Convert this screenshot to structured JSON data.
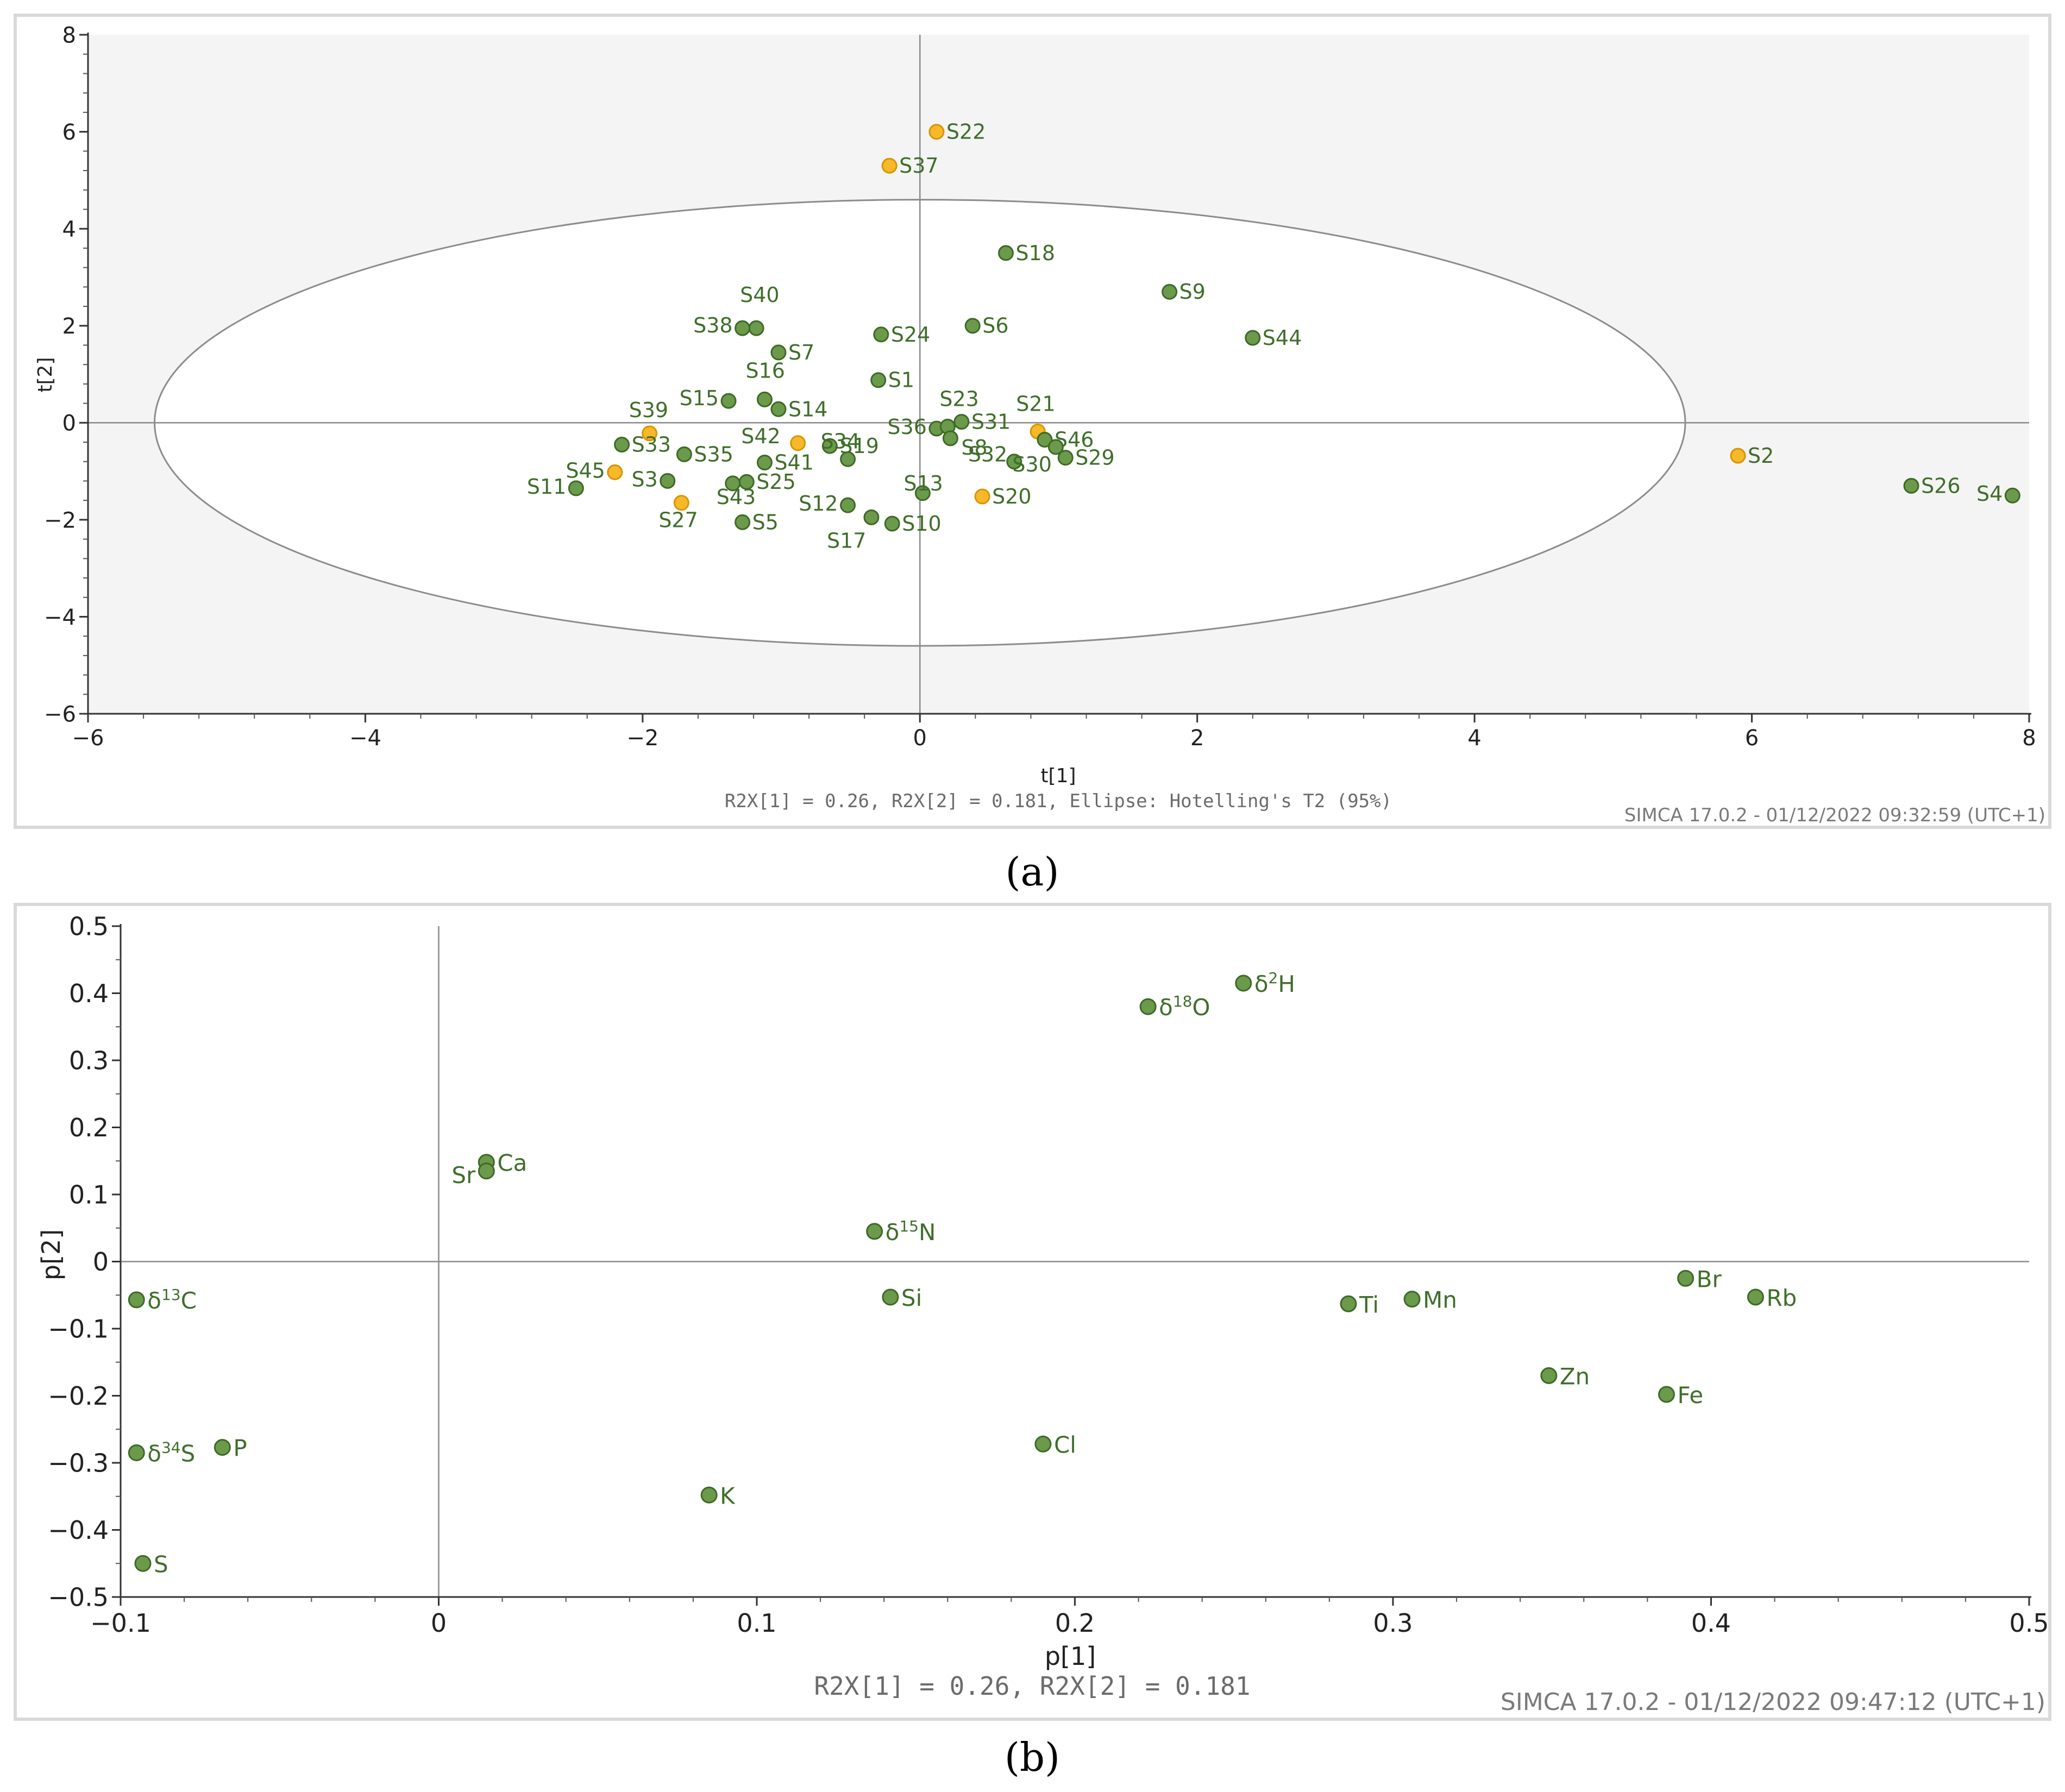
{
  "colors": {
    "green": "#6a9a4a",
    "green_stroke": "#3e6a28",
    "orange": "#f7b929",
    "orange_stroke": "#d89500",
    "label": "#3f6f2a"
  },
  "chart_data": [
    {
      "id": "a",
      "type": "scatter",
      "caption": "(a)",
      "xlabel": "t[1]",
      "ylabel": "t[2]",
      "xlim": [
        -6,
        8
      ],
      "ylim": [
        -6,
        8
      ],
      "xticks": [
        -6,
        -4,
        -2,
        0,
        2,
        4,
        6,
        8
      ],
      "yticks": [
        -6,
        -4,
        -2,
        0,
        2,
        4,
        6,
        8
      ],
      "xtick_labels": [
        "−6",
        "−4",
        "−2",
        "0",
        "2",
        "4",
        "6",
        "8"
      ],
      "ytick_labels": [
        "−6",
        "−4",
        "−2",
        "0",
        "2",
        "4",
        "6",
        "8"
      ],
      "footer": "R2X[1] = 0.26, R2X[2] = 0.181, Ellipse: Hotelling's T2 (95%)",
      "stamp": "SIMCA 17.0.2 - 01/12/2022 09:32:59 (UTC+1)",
      "ellipse": {
        "cx": 0,
        "cy": 0,
        "rx": 5.52,
        "ry": 4.6
      },
      "points": [
        {
          "label": "S22",
          "x": 0.12,
          "y": 6.0,
          "group": "orange"
        },
        {
          "label": "S37",
          "x": -0.22,
          "y": 5.3,
          "group": "orange"
        },
        {
          "label": "S18",
          "x": 0.62,
          "y": 3.5,
          "group": "green"
        },
        {
          "label": "S9",
          "x": 1.8,
          "y": 2.7,
          "group": "green"
        },
        {
          "label": "S44",
          "x": 2.4,
          "y": 1.75,
          "group": "green"
        },
        {
          "label": "S6",
          "x": 0.38,
          "y": 2.0,
          "group": "green"
        },
        {
          "label": "S24",
          "x": -0.28,
          "y": 1.82,
          "group": "green"
        },
        {
          "label": "S40",
          "x": -1.18,
          "y": 1.95,
          "group": "green"
        },
        {
          "label": "S38",
          "x": -1.28,
          "y": 1.95,
          "group": "green"
        },
        {
          "label": "S7",
          "x": -1.02,
          "y": 1.45,
          "group": "green"
        },
        {
          "label": "S1",
          "x": -0.3,
          "y": 0.88,
          "group": "green"
        },
        {
          "label": "S16",
          "x": -1.12,
          "y": 0.48,
          "group": "green"
        },
        {
          "label": "S15",
          "x": -1.38,
          "y": 0.45,
          "group": "green"
        },
        {
          "label": "S14",
          "x": -1.02,
          "y": 0.28,
          "group": "green"
        },
        {
          "label": "S39",
          "x": -1.95,
          "y": -0.22,
          "group": "orange"
        },
        {
          "label": "S33",
          "x": -2.15,
          "y": -0.45,
          "group": "green"
        },
        {
          "label": "S35",
          "x": -1.7,
          "y": -0.65,
          "group": "green"
        },
        {
          "label": "S42",
          "x": -0.88,
          "y": -0.42,
          "group": "orange"
        },
        {
          "label": "S19",
          "x": -0.65,
          "y": -0.48,
          "group": "green"
        },
        {
          "label": "S41",
          "x": -1.12,
          "y": -0.82,
          "group": "green"
        },
        {
          "label": "S45",
          "x": -2.2,
          "y": -1.02,
          "group": "orange"
        },
        {
          "label": "S11",
          "x": -2.48,
          "y": -1.35,
          "group": "green"
        },
        {
          "label": "S3",
          "x": -1.82,
          "y": -1.2,
          "group": "green"
        },
        {
          "label": "S25",
          "x": -1.25,
          "y": -1.22,
          "group": "green"
        },
        {
          "label": "S27",
          "x": -1.72,
          "y": -1.65,
          "group": "orange"
        },
        {
          "label": "S43",
          "x": -1.35,
          "y": -1.25,
          "group": "green"
        },
        {
          "label": "S5",
          "x": -1.28,
          "y": -2.05,
          "group": "green"
        },
        {
          "label": "S12",
          "x": -0.52,
          "y": -1.7,
          "group": "green"
        },
        {
          "label": "S34",
          "x": -0.52,
          "y": -0.75,
          "group": "green"
        },
        {
          "label": "S17",
          "x": -0.35,
          "y": -1.95,
          "group": "green"
        },
        {
          "label": "S10",
          "x": -0.2,
          "y": -2.08,
          "group": "green"
        },
        {
          "label": "S13",
          "x": 0.02,
          "y": -1.45,
          "group": "green"
        },
        {
          "label": "S36",
          "x": 0.12,
          "y": -0.12,
          "group": "green"
        },
        {
          "label": "S23",
          "x": 0.2,
          "y": -0.08,
          "group": "green"
        },
        {
          "label": "S31",
          "x": 0.3,
          "y": 0.02,
          "group": "green"
        },
        {
          "label": "S8",
          "x": 0.22,
          "y": -0.32,
          "group": "green"
        },
        {
          "label": "S32",
          "x": 0.68,
          "y": -0.8,
          "group": "green"
        },
        {
          "label": "S20",
          "x": 0.45,
          "y": -1.52,
          "group": "orange"
        },
        {
          "label": "S21",
          "x": 0.85,
          "y": -0.18,
          "group": "orange"
        },
        {
          "label": "S46",
          "x": 0.9,
          "y": -0.35,
          "group": "green"
        },
        {
          "label": "S30",
          "x": 0.98,
          "y": -0.5,
          "group": "green"
        },
        {
          "label": "S29",
          "x": 1.05,
          "y": -0.72,
          "group": "green"
        },
        {
          "label": "S2",
          "x": 5.9,
          "y": -0.68,
          "group": "orange"
        },
        {
          "label": "S26",
          "x": 7.15,
          "y": -1.3,
          "group": "green"
        },
        {
          "label": "S4",
          "x": 7.88,
          "y": -1.5,
          "group": "green"
        }
      ]
    },
    {
      "id": "b",
      "type": "scatter",
      "caption": "(b)",
      "xlabel": "p[1]",
      "ylabel": "p[2]",
      "xlim": [
        -0.1,
        0.5
      ],
      "ylim": [
        -0.5,
        0.5
      ],
      "xticks": [
        -0.1,
        0,
        0.1,
        0.2,
        0.3,
        0.4,
        0.5
      ],
      "yticks": [
        -0.5,
        -0.4,
        -0.3,
        -0.2,
        -0.1,
        0,
        0.1,
        0.2,
        0.3,
        0.4,
        0.5
      ],
      "xtick_labels": [
        "−0.1",
        "0",
        "0.1",
        "0.2",
        "0.3",
        "0.4",
        "0.5"
      ],
      "ytick_labels": [
        "−0.5",
        "−0.4",
        "−0.3",
        "−0.2",
        "−0.1",
        "0",
        "0.1",
        "0.2",
        "0.3",
        "0.4",
        "0.5"
      ],
      "footer": "R2X[1] = 0.26, R2X[2] = 0.181",
      "stamp": "SIMCA 17.0.2 - 01/12/2022 09:47:12 (UTC+1)",
      "points": [
        {
          "label": "δ2H",
          "base": "δ",
          "sup": "2",
          "tail": "H",
          "x": 0.253,
          "y": 0.415
        },
        {
          "label": "δ18O",
          "base": "δ",
          "sup": "18",
          "tail": "O",
          "x": 0.223,
          "y": 0.38
        },
        {
          "label": "Ca",
          "x": 0.015,
          "y": 0.148
        },
        {
          "label": "Sr",
          "x": 0.015,
          "y": 0.135
        },
        {
          "label": "δ15N",
          "base": "δ",
          "sup": "15",
          "tail": "N",
          "x": 0.137,
          "y": 0.045
        },
        {
          "label": "δ13C",
          "base": "δ",
          "sup": "13",
          "tail": "C",
          "x": -0.095,
          "y": -0.057
        },
        {
          "label": "Si",
          "x": 0.142,
          "y": -0.053
        },
        {
          "label": "Ti",
          "x": 0.286,
          "y": -0.063
        },
        {
          "label": "Mn",
          "x": 0.306,
          "y": -0.056
        },
        {
          "label": "Br",
          "x": 0.392,
          "y": -0.025
        },
        {
          "label": "Rb",
          "x": 0.414,
          "y": -0.053
        },
        {
          "label": "Zn",
          "x": 0.349,
          "y": -0.17
        },
        {
          "label": "Fe",
          "x": 0.386,
          "y": -0.198
        },
        {
          "label": "Cl",
          "x": 0.19,
          "y": -0.272
        },
        {
          "label": "δ34S",
          "base": "δ",
          "sup": "34",
          "tail": "S",
          "x": -0.095,
          "y": -0.285
        },
        {
          "label": "P",
          "x": -0.068,
          "y": -0.277
        },
        {
          "label": "K",
          "x": 0.085,
          "y": -0.348
        },
        {
          "label": "S",
          "x": -0.093,
          "y": -0.45
        }
      ]
    }
  ]
}
